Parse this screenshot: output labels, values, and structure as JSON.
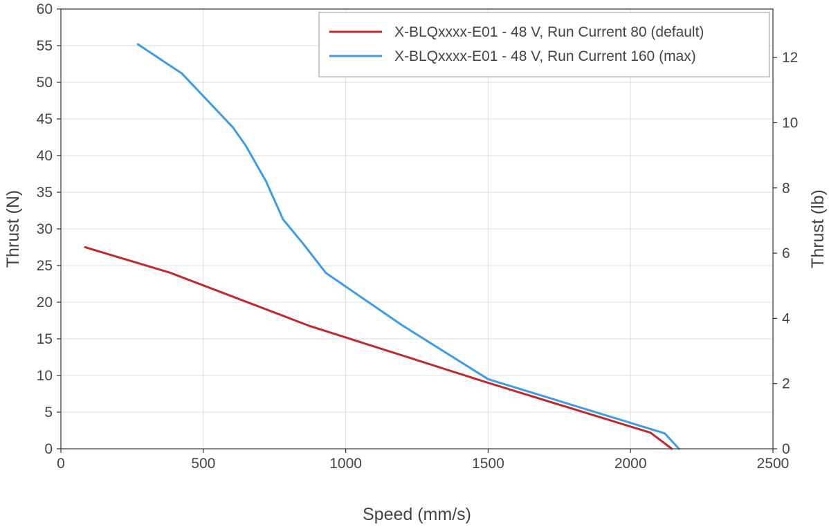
{
  "chart_data": {
    "type": "line",
    "xlabel": "Speed (mm/s)",
    "ylabel": "Thrust (N)",
    "y2label": "Thrust (lb)",
    "xlim": [
      0,
      2500
    ],
    "ylim": [
      0,
      60
    ],
    "y2lim": [
      0,
      13.488
    ],
    "xticks": [
      0,
      500,
      1000,
      1500,
      2000,
      2500
    ],
    "yticks": [
      0,
      5,
      10,
      15,
      20,
      25,
      30,
      35,
      40,
      45,
      50,
      55,
      60
    ],
    "y2ticks": [
      0,
      2,
      4,
      6,
      8,
      10,
      12
    ],
    "grid": true,
    "legend_position": "top-right",
    "series": [
      {
        "name": "X-BLQxxxx-E01 - 48 V, Run Current 80 (default)",
        "color": "#c1272d",
        "x": [
          85,
          385,
          870,
          1500,
          2070,
          2145
        ],
        "y": [
          27.5,
          24.0,
          16.8,
          9.0,
          2.2,
          0
        ]
      },
      {
        "name": "X-BLQxxxx-E01 - 48 V, Run Current 160 (max)",
        "color": "#3d9be9",
        "x": [
          270,
          425,
          605,
          650,
          720,
          780,
          850,
          930,
          1200,
          1500,
          2120,
          2170
        ],
        "y": [
          55.2,
          51.2,
          43.8,
          41.3,
          36.5,
          31.3,
          28.0,
          24.0,
          16.8,
          9.5,
          2.1,
          0
        ]
      }
    ]
  }
}
